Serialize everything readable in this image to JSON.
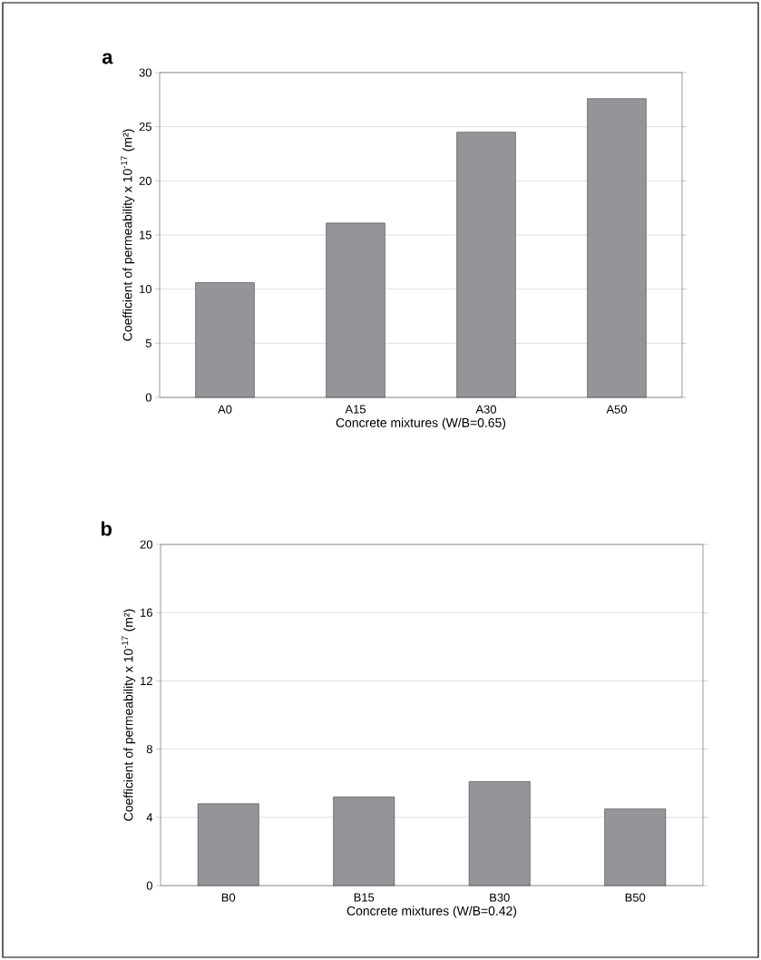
{
  "chart_data": [
    {
      "type": "bar",
      "title": "**a**",
      "xlabel": "Concrete mixtures (W/B=0.65)",
      "ylabel": "Coefficient of permeability x 10$^{-17}$ (m²)",
      "categories": [
        "A0",
        "A15",
        "A30",
        "A50"
      ],
      "values": [
        10.6,
        16.1,
        24.5,
        27.6
      ],
      "color": "#939598",
      "ylim": [
        0,
        30
      ],
      "yticks": [
        0,
        5,
        10,
        15,
        20,
        25,
        30
      ],
      "grid": "y"
    },
    {
      "type": "bar",
      "title": "**b**",
      "xlabel": "Concrete mixtures (W/B=0.42)",
      "ylabel": "Coefficient of permeability x 10$^{-17}$ (m²)",
      "categories": [
        "B0",
        "B15",
        "B30",
        "B50"
      ],
      "values": [
        4.8,
        5.2,
        6.1,
        4.5
      ],
      "color": "#939598",
      "ylim": [
        0,
        20
      ],
      "yticks": [
        0,
        4,
        8,
        12,
        16,
        20
      ],
      "grid": "y"
    }
  ]
}
